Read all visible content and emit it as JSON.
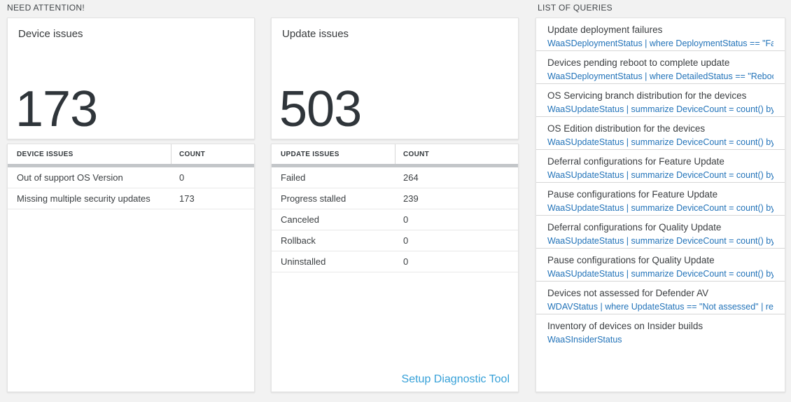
{
  "colors": {
    "page_bg": "#f2f2f2",
    "card_bg": "#ffffff",
    "query_link_blue": "#2273b9",
    "diag_link_blue": "#35a0d8",
    "thick_bar_gray": "#c3c6c9",
    "big_number_dark": "#2f353a"
  },
  "need_attention": {
    "section_label": "NEED ATTENTION!",
    "device_card": {
      "title": "Device issues",
      "count": "173",
      "table": {
        "headers": [
          "DEVICE ISSUES",
          "COUNT"
        ],
        "rows": [
          {
            "label": "Out of support OS Version",
            "count": "0"
          },
          {
            "label": "Missing multiple security updates",
            "count": "173"
          }
        ]
      }
    },
    "update_card": {
      "title": "Update issues",
      "count": "503",
      "table": {
        "headers": [
          "UPDATE ISSUES",
          "COUNT"
        ],
        "rows": [
          {
            "label": "Failed",
            "count": "264"
          },
          {
            "label": "Progress stalled",
            "count": "239"
          },
          {
            "label": "Canceled",
            "count": "0"
          },
          {
            "label": "Rollback",
            "count": "0"
          },
          {
            "label": "Uninstalled",
            "count": "0"
          }
        ]
      },
      "link": "Setup Diagnostic Tool"
    }
  },
  "queries": {
    "section_label": "LIST OF QUERIES",
    "items": [
      {
        "title": "Update deployment failures",
        "query": "WaaSDeploymentStatus | where DeploymentStatus == \"Failed\" |..."
      },
      {
        "title": "Devices pending reboot to complete update",
        "query": "WaaSDeploymentStatus | where DetailedStatus == \"Reboot pend..."
      },
      {
        "title": "OS Servicing branch distribution for the devices",
        "query": "WaaSUpdateStatus | summarize DeviceCount = count() by OSSer..."
      },
      {
        "title": "OS Edition distribution for the devices",
        "query": "WaaSUpdateStatus | summarize DeviceCount = count() by OSEdit..."
      },
      {
        "title": "Deferral configurations for Feature Update",
        "query": "WaaSUpdateStatus | summarize DeviceCount = count() by Featur..."
      },
      {
        "title": "Pause configurations for Feature Update",
        "query": "WaaSUpdateStatus | summarize DeviceCount = count() by Featur..."
      },
      {
        "title": "Deferral configurations for Quality Update",
        "query": "WaaSUpdateStatus | summarize DeviceCount = count() by Qualit..."
      },
      {
        "title": "Pause configurations for Quality Update",
        "query": "WaaSUpdateStatus | summarize DeviceCount = count() by Qualit..."
      },
      {
        "title": "Devices not assessed for Defender AV",
        "query": "WDAVStatus | where UpdateStatus == \"Not assessed\" | render ta..."
      },
      {
        "title": "Inventory of devices on Insider builds",
        "query": "WaaSInsiderStatus"
      }
    ]
  }
}
